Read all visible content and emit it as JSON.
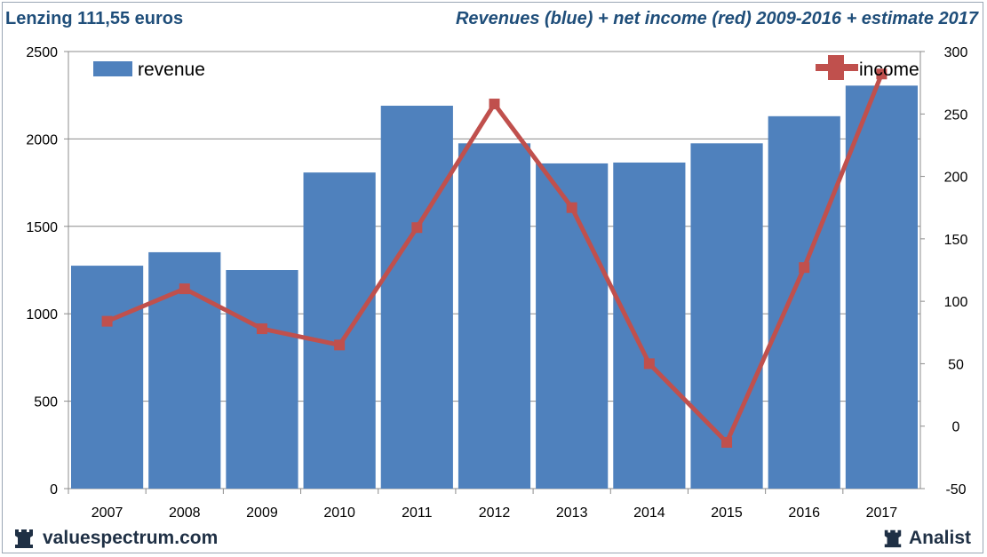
{
  "header": {
    "left": "Lenzing 111,55 euros",
    "right": "Revenues (blue) + net income (red) 2009-2016 + estimate 2017"
  },
  "footer": {
    "site": "valuespectrum.com",
    "brand": "Analist",
    "logo_icon": "rook-icon"
  },
  "chart_data": {
    "type": "bar",
    "categories": [
      "2007",
      "2008",
      "2009",
      "2010",
      "2011",
      "2012",
      "2013",
      "2014",
      "2015",
      "2016",
      "2017"
    ],
    "series": [
      {
        "name": "revenue",
        "type": "bar",
        "axis": "left",
        "color": "#4f81bd",
        "values": [
          1275,
          1352,
          1250,
          1808,
          2190,
          1975,
          1860,
          1865,
          1975,
          2130,
          2305
        ]
      },
      {
        "name": "income",
        "type": "line",
        "axis": "right",
        "color": "#c0504d",
        "values": [
          84,
          110,
          78,
          65,
          159,
          258,
          175,
          50,
          -13,
          127,
          282
        ]
      }
    ],
    "y_left": {
      "min": 0,
      "max": 2500,
      "ticks": [
        0,
        500,
        1000,
        1500,
        2000,
        2500
      ]
    },
    "y_right": {
      "min": -50,
      "max": 300,
      "ticks": [
        -50,
        0,
        50,
        100,
        150,
        200,
        250,
        300
      ]
    },
    "grid": true,
    "legend": {
      "revenue": "top-left",
      "income": "top-right"
    }
  }
}
